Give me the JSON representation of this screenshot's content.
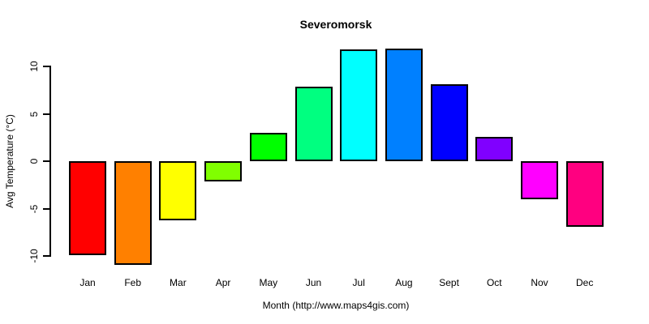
{
  "page": {
    "background_color": "#ffffff",
    "text_color": "#000000"
  },
  "chart_data": {
    "type": "bar",
    "title": "Severomorsk",
    "xlabel": "Month (http://www.maps4gis.com)",
    "ylabel": "Avg Temperature (°C)",
    "categories": [
      "Jan",
      "Feb",
      "Mar",
      "Apr",
      "May",
      "Jun",
      "Jul",
      "Aug",
      "Sept",
      "Oct",
      "Nov",
      "Dec"
    ],
    "values": [
      -9.9,
      -10.9,
      -6.2,
      -2.1,
      3.0,
      7.9,
      11.8,
      11.9,
      8.1,
      2.6,
      -4.0,
      -6.9
    ],
    "bar_colors": [
      "#FF0000",
      "#FF8000",
      "#FFFF00",
      "#80FF00",
      "#00FF00",
      "#00FF80",
      "#00FFFF",
      "#0080FF",
      "#0000FF",
      "#8000FF",
      "#FF00FF",
      "#FF0080"
    ],
    "bar_border_color": "#000000",
    "yticks": [
      -10,
      -5,
      0,
      5,
      10
    ],
    "ylim": [
      -11,
      12
    ],
    "baseline": 0,
    "grid": false,
    "legend": null
  }
}
